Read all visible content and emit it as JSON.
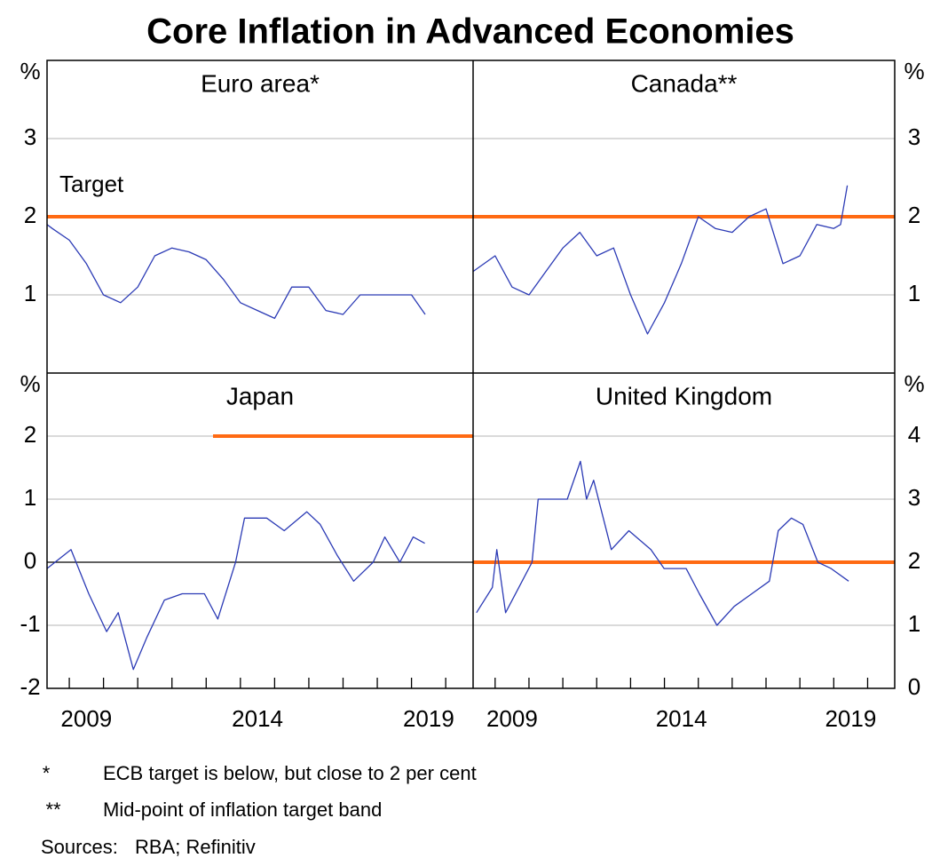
{
  "title": "Core Inflation in Advanced Economies",
  "chart_data": [
    {
      "type": "line",
      "title": "Euro area*",
      "y_label": "%",
      "color": "#2b3ab5",
      "xlim": [
        2008.35,
        2020.8
      ],
      "ylim": [
        0,
        4
      ],
      "yticks": [
        1,
        2,
        3
      ],
      "grid": true,
      "target": {
        "value": 2,
        "color": "#ff6a13",
        "label": "Target"
      },
      "x": [
        2008.35,
        2008.5,
        2009.0,
        2009.5,
        2010.0,
        2010.5,
        2011.0,
        2011.5,
        2012.0,
        2012.5,
        2013.0,
        2013.5,
        2014.0,
        2014.5,
        2015.0,
        2015.5,
        2016.0,
        2016.5,
        2017.0,
        2017.5,
        2018.0,
        2018.5,
        2019.0,
        2019.4
      ],
      "values": [
        1.9,
        1.85,
        1.7,
        1.4,
        1.0,
        0.9,
        1.1,
        1.5,
        1.6,
        1.55,
        1.45,
        1.2,
        0.9,
        0.8,
        0.7,
        1.1,
        1.1,
        0.8,
        0.75,
        1.0,
        1.0,
        1.0,
        1.0,
        0.75
      ]
    },
    {
      "type": "line",
      "title": "Canada**",
      "y_label": "%",
      "color": "#2b3ab5",
      "xlim": [
        2008.35,
        2020.8
      ],
      "ylim": [
        0,
        4
      ],
      "yticks": [
        1,
        2,
        3
      ],
      "grid": true,
      "target": {
        "value": 2,
        "color": "#ff6a13"
      },
      "x": [
        2008.35,
        2009.0,
        2009.5,
        2010.0,
        2010.5,
        2011.0,
        2011.5,
        2012.0,
        2012.5,
        2013.0,
        2013.5,
        2014.0,
        2014.5,
        2015.0,
        2015.5,
        2016.0,
        2016.5,
        2017.0,
        2017.5,
        2018.0,
        2018.5,
        2019.0,
        2019.2,
        2019.4
      ],
      "values": [
        1.3,
        1.5,
        1.1,
        1.0,
        1.3,
        1.6,
        1.8,
        1.5,
        1.6,
        1.0,
        0.5,
        0.9,
        1.4,
        2.0,
        1.85,
        1.8,
        2.0,
        2.1,
        1.4,
        1.5,
        1.9,
        1.85,
        1.9,
        2.4
      ]
    },
    {
      "type": "line",
      "title": "Japan",
      "y_label": "%",
      "color": "#2b3ab5",
      "xlim": [
        2008.35,
        2020.8
      ],
      "ylim": [
        -2,
        3
      ],
      "yticks": [
        -2,
        -1,
        0,
        1,
        2
      ],
      "grid": true,
      "baseline": 0,
      "target": {
        "value": 2,
        "color": "#ff6a13",
        "start": 2013.2
      },
      "xticks": [
        2009,
        2010,
        2011,
        2012,
        2013,
        2014,
        2015,
        2016,
        2017,
        2018,
        2019,
        2020
      ],
      "xlabels": [
        {
          "value": 2009.5,
          "label": "2009"
        },
        {
          "value": 2014.5,
          "label": "2014"
        },
        {
          "value": 2019.5,
          "label": "2019"
        }
      ],
      "x": [
        2008.35,
        2009.05,
        2009.57,
        2010.09,
        2010.43,
        2010.87,
        2011.26,
        2011.78,
        2012.3,
        2012.95,
        2013.34,
        2013.86,
        2014.12,
        2014.77,
        2015.28,
        2015.94,
        2016.33,
        2016.84,
        2017.31,
        2017.88,
        2018.22,
        2018.66,
        2019.05,
        2019.39
      ],
      "values": [
        -0.1,
        0.2,
        -0.5,
        -1.1,
        -0.8,
        -1.7,
        -1.2,
        -0.6,
        -0.5,
        -0.5,
        -0.9,
        0.0,
        0.7,
        0.7,
        0.5,
        0.8,
        0.6,
        0.1,
        -0.3,
        0.0,
        0.4,
        0.0,
        0.4,
        0.3
      ]
    },
    {
      "type": "line",
      "title": "United Kingdom",
      "y_label": "%",
      "color": "#2b3ab5",
      "xlim": [
        2008.35,
        2020.8
      ],
      "ylim": [
        0,
        5
      ],
      "yticks": [
        0,
        1,
        2,
        3,
        4
      ],
      "grid": true,
      "target": {
        "value": 2,
        "color": "#ff6a13"
      },
      "xticks": [
        2009,
        2010,
        2011,
        2012,
        2013,
        2014,
        2015,
        2016,
        2017,
        2018,
        2019,
        2020
      ],
      "xlabels": [
        {
          "value": 2009.5,
          "label": "2009"
        },
        {
          "value": 2014.5,
          "label": "2014"
        },
        {
          "value": 2019.5,
          "label": "2019"
        }
      ],
      "x": [
        2008.45,
        2008.92,
        2009.05,
        2009.31,
        2009.7,
        2010.09,
        2010.27,
        2010.74,
        2011.13,
        2011.52,
        2011.7,
        2011.91,
        2012.43,
        2012.95,
        2013.6,
        2013.99,
        2014.64,
        2015.03,
        2015.55,
        2016.06,
        2016.58,
        2017.1,
        2017.36,
        2017.75,
        2018.09,
        2018.53,
        2018.92,
        2019.44
      ],
      "values": [
        1.2,
        1.6,
        2.2,
        1.2,
        1.6,
        2.0,
        3.0,
        3.0,
        3.0,
        3.6,
        3.0,
        3.3,
        2.2,
        2.5,
        2.2,
        1.9,
        1.9,
        1.5,
        1.0,
        1.3,
        1.5,
        1.7,
        2.5,
        2.7,
        2.6,
        2.0,
        1.9,
        1.7
      ]
    }
  ],
  "notes": [
    {
      "symbol": "*",
      "text": "ECB target is below, but close to 2 per cent"
    },
    {
      "symbol": "**",
      "text": "Mid-point of inflation target band"
    }
  ],
  "sources": {
    "label": "Sources:",
    "text": "RBA; Refinitiv"
  }
}
